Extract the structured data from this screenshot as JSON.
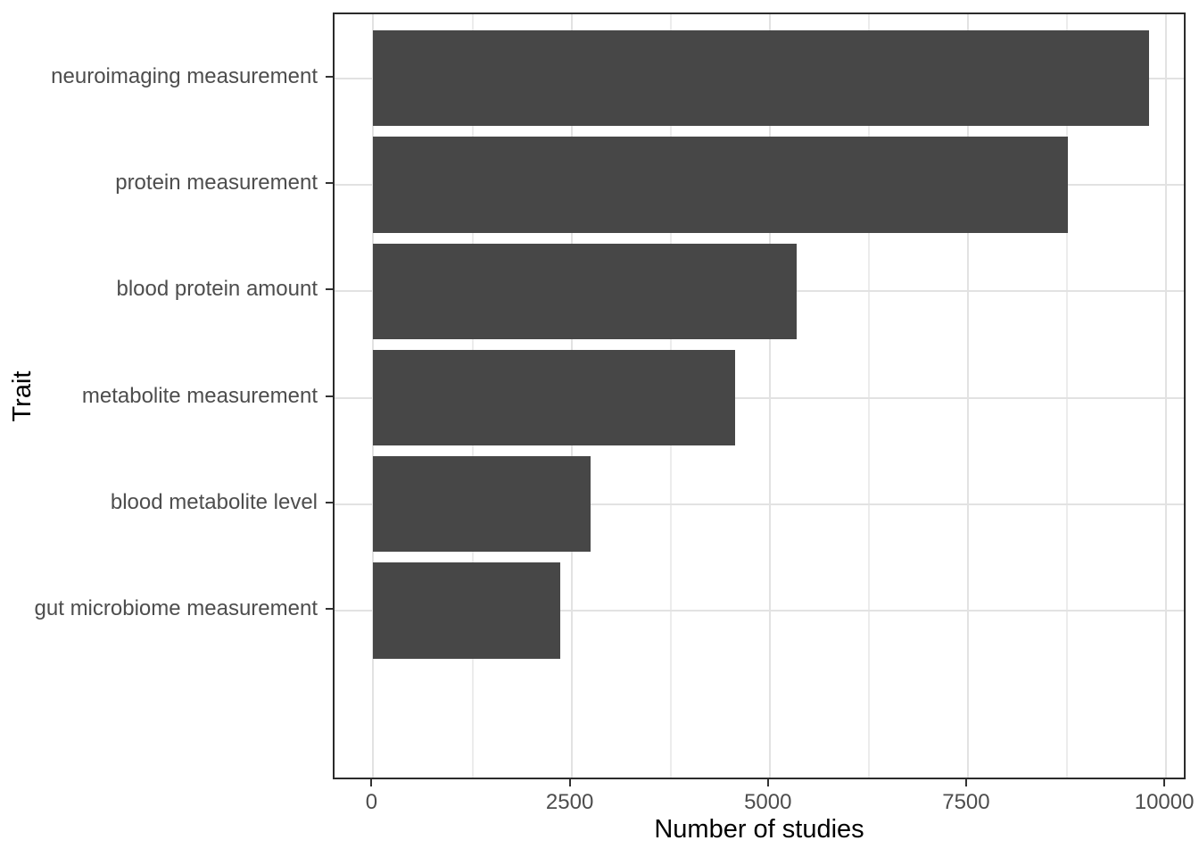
{
  "chart_data": {
    "type": "bar",
    "orientation": "horizontal",
    "title": "",
    "xlabel": "Number of studies",
    "ylabel": "Trait",
    "categories": [
      "neuroimaging measurement",
      "protein measurement",
      "blood protein amount",
      "metabolite measurement",
      "blood metabolite level",
      "gut microbiome measurement"
    ],
    "values": [
      9780,
      8760,
      5340,
      4560,
      2740,
      2360
    ],
    "x_major_ticks": [
      0,
      2500,
      5000,
      7500,
      10000
    ],
    "x_tick_labels": [
      "0",
      "2500",
      "5000",
      "7500",
      "10000"
    ],
    "x_minor_ticks": [
      1250,
      3750,
      6250,
      8750
    ],
    "xlim": [
      -489,
      10269
    ],
    "bar_relative_width": 0.9,
    "category_expansion": 0.6,
    "grid": true,
    "legend_position": "none",
    "colors": {
      "bar_fill": "#474747",
      "major_grid": "#e2e2e2",
      "minor_grid": "#ececec",
      "panel_border": "#2b2b2b",
      "tick_mark": "#333333",
      "tick_label": "#4d4d4d",
      "axis_title": "#000000",
      "background": "#ffffff"
    }
  }
}
